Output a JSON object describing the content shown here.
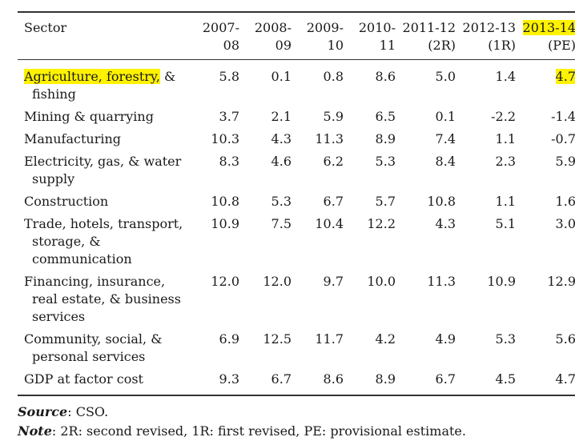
{
  "table": {
    "headers": [
      {
        "line1": "Sector",
        "line2": ""
      },
      {
        "line1": "2007-",
        "line2": "08"
      },
      {
        "line1": "2008-",
        "line2": "09"
      },
      {
        "line1": "2009-",
        "line2": "10"
      },
      {
        "line1": "2010-",
        "line2": "11"
      },
      {
        "line1": "2011-12",
        "line2": "(2R)"
      },
      {
        "line1": "2012-13",
        "line2": "(1R)"
      },
      {
        "line1": "2013-14",
        "line2": "(PE)"
      }
    ],
    "rows": [
      {
        "label": "Agriculture, forestry, & fishing",
        "values": [
          "5.8",
          "0.1",
          "0.8",
          "8.6",
          "5.0",
          "1.4",
          "4.7"
        ]
      },
      {
        "label": "Mining & quarrying",
        "values": [
          "3.7",
          "2.1",
          "5.9",
          "6.5",
          "0.1",
          "-2.2",
          "-1.4"
        ]
      },
      {
        "label": "Manufacturing",
        "values": [
          "10.3",
          "4.3",
          "11.3",
          "8.9",
          "7.4",
          "1.1",
          "-0.7"
        ]
      },
      {
        "label": "Electricity, gas, & water supply",
        "values": [
          "8.3",
          "4.6",
          "6.2",
          "5.3",
          "8.4",
          "2.3",
          "5.9"
        ]
      },
      {
        "label": "Construction",
        "values": [
          "10.8",
          "5.3",
          "6.7",
          "5.7",
          "10.8",
          "1.1",
          "1.6"
        ]
      },
      {
        "label": "Trade, hotels, transport, storage, & communication",
        "values": [
          "10.9",
          "7.5",
          "10.4",
          "12.2",
          "4.3",
          "5.1",
          "3.0"
        ]
      },
      {
        "label": "Financing, insurance, real estate, & business services",
        "values": [
          "12.0",
          "12.0",
          "9.7",
          "10.0",
          "11.3",
          "10.9",
          "12.9"
        ]
      },
      {
        "label": "Community, social, & personal services",
        "values": [
          "6.9",
          "12.5",
          "11.7",
          "4.2",
          "4.9",
          "5.3",
          "5.6"
        ]
      },
      {
        "label": "GDP at factor cost",
        "values": [
          "9.3",
          "6.7",
          "8.6",
          "8.9",
          "6.7",
          "4.5",
          "4.7"
        ]
      }
    ]
  },
  "notes": {
    "source_label": "Source",
    "source_text": ": CSO.",
    "note_label": "Note",
    "note_text": ": 2R: second revised, 1R: first revised, PE: provisional estimate."
  },
  "highlight_color": "#fff200"
}
